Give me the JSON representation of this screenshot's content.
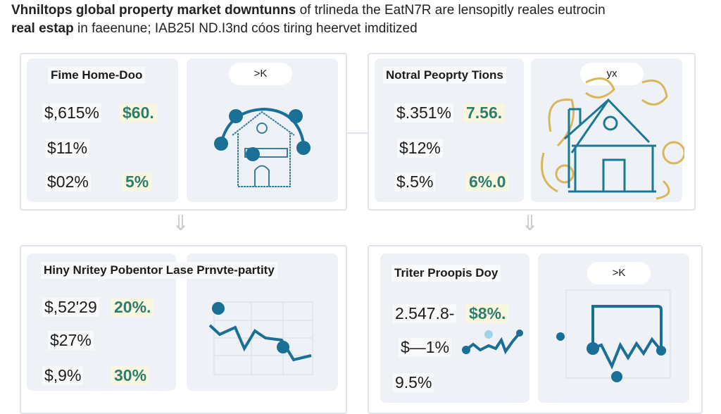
{
  "header": {
    "line1_bold": "Vhniltops global property market downtunns",
    "line1_rest": " of trlineda the EatN7R are lensopitly reales eutrocin",
    "line2_bold": "real estap",
    "line2_rest": " in faeenune; IAB25I ND.I3nd cóos tiring heervet imditized"
  },
  "cards": [
    {
      "title": "Fime Home-Doo",
      "values": [
        "$,615%",
        "$11%",
        "$02%"
      ],
      "highlights": [
        "$60.",
        "5%"
      ],
      "pill": ">K",
      "icon": "house-network-icon"
    },
    {
      "title": "Notral Peoprty Tions",
      "values": [
        "$.351%",
        "$12%",
        "$.5%"
      ],
      "highlights": [
        "7.56.",
        "6%.0"
      ],
      "pill": "yx",
      "icon": "house-icon"
    },
    {
      "title": "Hiny Nritey Pobentor Lase Prnvte-partity",
      "values": [
        "$,52'29",
        "$27%",
        "$,9%"
      ],
      "highlights": [
        "20%.",
        "30%"
      ],
      "icon": "line-chart-icon"
    },
    {
      "title": "Triter Proopis Doy",
      "values": [
        "2.547.8-",
        "$—1%",
        "9.5%"
      ],
      "highlights": [
        "$8%."
      ],
      "pill": ">K",
      "icon": "line-chart-icon"
    }
  ],
  "colors": {
    "accent": "#1a6f96",
    "highlight_text": "#2f7d6d",
    "gold": "#d9b65a",
    "panel": "#eef2f6"
  }
}
